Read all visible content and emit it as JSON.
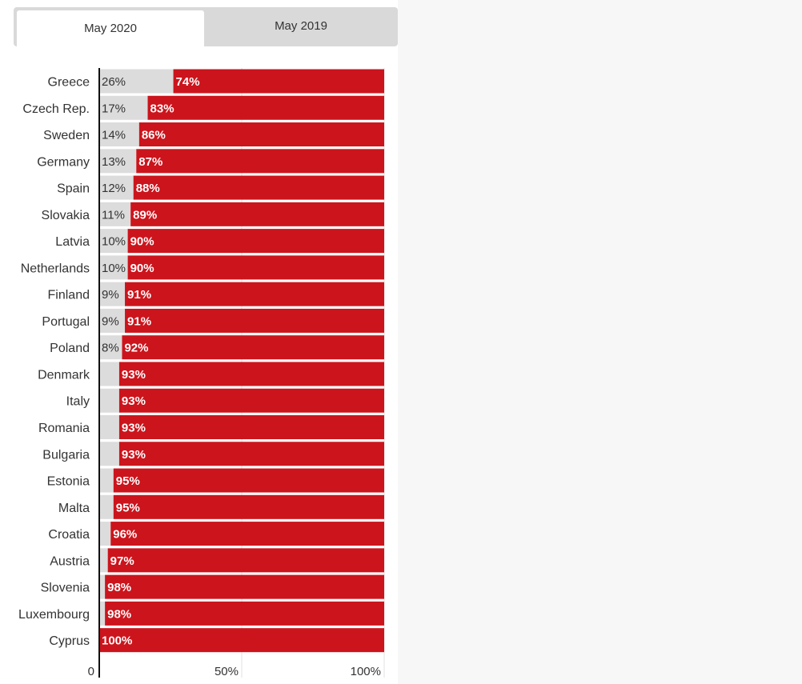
{
  "tabs": [
    {
      "label": "May 2020",
      "active": true
    },
    {
      "label": "May 2019",
      "active": false
    }
  ],
  "chart_data": {
    "type": "bar",
    "orientation": "horizontal",
    "stacked": true,
    "categories": [
      "Greece",
      "Czech Rep.",
      "Sweden",
      "Germany",
      "Spain",
      "Slovakia",
      "Latvia",
      "Netherlands",
      "Finland",
      "Portugal",
      "Poland",
      "Denmark",
      "Italy",
      "Romania",
      "Bulgaria",
      "Estonia",
      "Malta",
      "Croatia",
      "Austria",
      "Slovenia",
      "Luxembourg",
      "Cyprus"
    ],
    "series": [
      {
        "values": [
          26,
          17,
          14,
          13,
          12,
          11,
          10,
          10,
          9,
          9,
          8,
          7,
          7,
          7,
          7,
          5,
          5,
          4,
          3,
          2,
          2,
          0
        ],
        "color": "#dcdcdc",
        "labels": [
          "26%",
          "17%",
          "14%",
          "13%",
          "12%",
          "11%",
          "10%",
          "10%",
          "9%",
          "9%",
          "8%",
          "",
          "",
          "",
          "",
          "",
          "",
          "",
          "",
          "",
          "",
          ""
        ]
      },
      {
        "values": [
          74,
          83,
          86,
          87,
          88,
          89,
          90,
          90,
          91,
          91,
          92,
          93,
          93,
          93,
          93,
          95,
          95,
          96,
          97,
          98,
          98,
          100
        ],
        "color": "#cc141c",
        "labels": [
          "74%",
          "83%",
          "86%",
          "87%",
          "88%",
          "89%",
          "90%",
          "90%",
          "91%",
          "91%",
          "92%",
          "93%",
          "93%",
          "93%",
          "93%",
          "95%",
          "95%",
          "96%",
          "97%",
          "98%",
          "98%",
          "100%"
        ]
      }
    ],
    "xlim": [
      0,
      100
    ],
    "xticks": [
      {
        "value": 0,
        "label": "0"
      },
      {
        "value": 50,
        "label": "50%"
      },
      {
        "value": 100,
        "label": "100%"
      }
    ],
    "grid": true
  }
}
